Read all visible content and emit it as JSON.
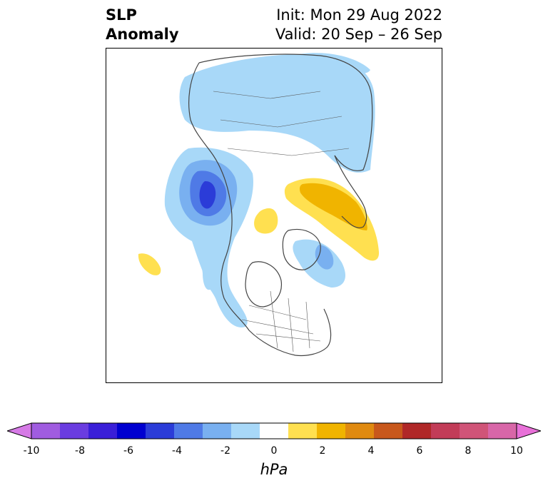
{
  "title": {
    "line1": "SLP",
    "line2": "Anomaly"
  },
  "info": {
    "init": "Init: Mon 29 Aug 2022",
    "valid": "Valid: 20 Sep – 26 Sep"
  },
  "colorbar": {
    "unit": "hPa",
    "ticks": [
      "-10",
      "-8",
      "-6",
      "-4",
      "-2",
      "0",
      "2",
      "4",
      "6",
      "8",
      "10"
    ],
    "colors": [
      "#d67ae6",
      "#a05ce0",
      "#6a3ce0",
      "#3a1fd8",
      "#0000d0",
      "#2b3cd8",
      "#4f7ae6",
      "#79b0f0",
      "#a8d8f8",
      "#ffffff",
      "#ffe050",
      "#f0b400",
      "#e08a10",
      "#c8581c",
      "#b02828",
      "#c23c58",
      "#d05478",
      "#d866a8",
      "#e870d8"
    ],
    "range": [
      -10,
      10
    ]
  },
  "colors": {
    "light_blue": "#a8d8f8",
    "mid_blue": "#79b0f0",
    "blue": "#4f7ae6",
    "dark_blue": "#2b3cd8",
    "yellow": "#ffe050",
    "orange": "#f0b400",
    "coast": "#444444"
  }
}
